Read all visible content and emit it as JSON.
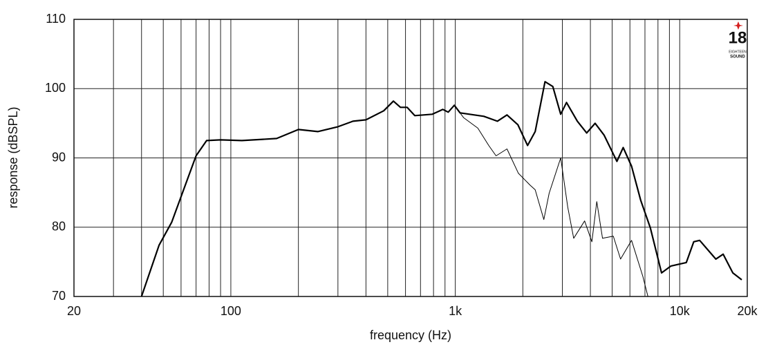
{
  "chart_data": {
    "type": "line",
    "x_label": "frequency (Hz)",
    "y_label": "response (dBSPL)",
    "xscale": "log",
    "grid": true,
    "xlim": [
      20,
      20000
    ],
    "ylim": [
      70,
      110
    ],
    "xticks": [
      {
        "value": 20,
        "label": "20"
      },
      {
        "value": 30,
        "label": null
      },
      {
        "value": 40,
        "label": null
      },
      {
        "value": 50,
        "label": null
      },
      {
        "value": 60,
        "label": null
      },
      {
        "value": 70,
        "label": null
      },
      {
        "value": 80,
        "label": null
      },
      {
        "value": 90,
        "label": null
      },
      100,
      {
        "value": 200,
        "label": null
      },
      {
        "value": 300,
        "label": null
      },
      {
        "value": 400,
        "label": null
      },
      {
        "value": 500,
        "label": null
      },
      {
        "value": 600,
        "label": null
      },
      {
        "value": 700,
        "label": null
      },
      {
        "value": 800,
        "label": null
      },
      {
        "value": 900,
        "label": null
      },
      {
        "value": 1000,
        "label": "1k"
      },
      {
        "value": 2000,
        "label": null
      },
      {
        "value": 3000,
        "label": null
      },
      {
        "value": 4000,
        "label": null
      },
      {
        "value": 5000,
        "label": null
      },
      {
        "value": 6000,
        "label": null
      },
      {
        "value": 7000,
        "label": null
      },
      {
        "value": 8000,
        "label": null
      },
      {
        "value": 9000,
        "label": null
      },
      {
        "value": 10000,
        "label": "10k"
      },
      {
        "value": 20000,
        "label": "20k"
      }
    ],
    "yticks": [
      70,
      80,
      90,
      100,
      110
    ],
    "series": [
      {
        "color": "#000000",
        "line_width": 2.2,
        "x": [
          40,
          47.9,
          54.5,
          60,
          70,
          78,
          90,
          112,
          160,
          200,
          244,
          300,
          350,
          400,
          480,
          530,
          570,
          610,
          660,
          790,
          880,
          930,
          990,
          1050,
          1340,
          1540,
          1700,
          1900,
          2100,
          2270,
          2510,
          2720,
          2950,
          3130,
          3500,
          3850,
          4200,
          4600,
          5250,
          5600,
          6100,
          6700,
          7400,
          8300,
          9140,
          10700,
          11550,
          12270,
          14480,
          15620,
          17240,
          18900
        ],
        "values": [
          70,
          77.4,
          80.7,
          84.4,
          90.3,
          92.5,
          92.6,
          92.5,
          92.8,
          94.1,
          93.8,
          94.5,
          95.3,
          95.5,
          96.8,
          98.2,
          97.3,
          97.3,
          96.1,
          96.3,
          97.0,
          96.6,
          97.6,
          96.5,
          96.0,
          95.3,
          96.2,
          94.8,
          91.8,
          93.8,
          101.0,
          100.3,
          96.3,
          98.0,
          95.3,
          93.6,
          95.0,
          93.3,
          89.5,
          91.5,
          88.8,
          83.9,
          79.9,
          73.4,
          74.4,
          74.9,
          77.9,
          78.1,
          75.4,
          76.1,
          73.4,
          72.4
        ]
      },
      {
        "color": "#000000",
        "line_width": 1,
        "x": [
          990,
          1090,
          1260,
          1410,
          1520,
          1700,
          1910,
          2150,
          2270,
          2480,
          2620,
          2950,
          3170,
          3370,
          3770,
          4060,
          4270,
          4530,
          5060,
          5450,
          6100,
          6850,
          7220
        ],
        "values": [
          97.6,
          95.8,
          94.3,
          91.8,
          90.3,
          91.3,
          87.8,
          86.1,
          85.4,
          81.1,
          84.9,
          90.0,
          82.9,
          78.4,
          80.9,
          77.9,
          83.7,
          78.4,
          78.7,
          75.4,
          78.1,
          72.9,
          70
        ]
      }
    ]
  },
  "logo": {
    "number": "18",
    "line1": "EIGHTEEN",
    "line2": "SOUND"
  }
}
